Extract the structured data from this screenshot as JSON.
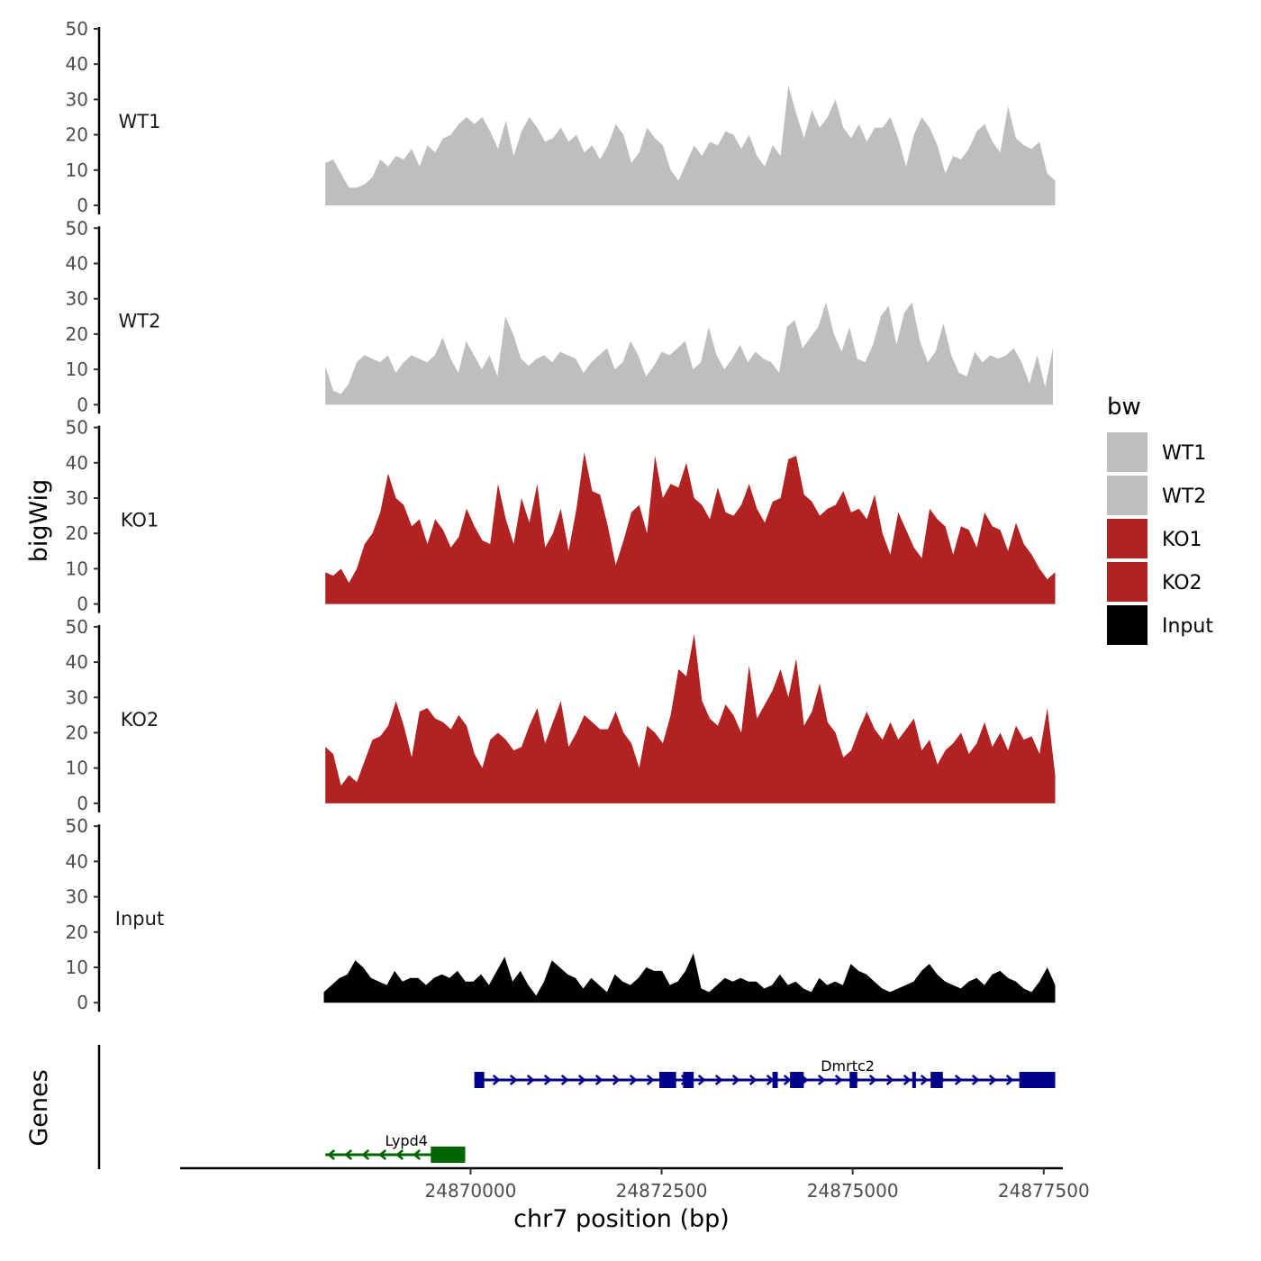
{
  "chart_data": {
    "type": "area",
    "title": "",
    "xlabel": "chr7 position (bp)",
    "ylabel": "bigWig",
    "genes_label": "Genes",
    "xlim": [
      24866200,
      24877750
    ],
    "x_ticks": [
      24870000,
      24872500,
      24875000,
      24877500
    ],
    "x_tick_labels": [
      "24870000",
      "24872500",
      "24875000",
      "24877500"
    ],
    "ylim": [
      0,
      50
    ],
    "y_ticks": [
      0,
      10,
      20,
      30,
      40,
      50
    ],
    "y_tick_labels": [
      "0",
      "10",
      "20",
      "30",
      "40",
      "50"
    ],
    "legend": {
      "title": "bw",
      "position": "right",
      "entries": [
        {
          "label": "WT1",
          "color": "#bebebe"
        },
        {
          "label": "WT2",
          "color": "#bebebe"
        },
        {
          "label": "KO1",
          "color": "#b22222"
        },
        {
          "label": "KO2",
          "color": "#b22222"
        },
        {
          "label": "Input",
          "color": "#000000"
        }
      ]
    },
    "series": [
      {
        "name": "WT1",
        "color": "#bebebe",
        "x_start": 24868100,
        "x_end": 24877650,
        "values": [
          12,
          13,
          9,
          5,
          5,
          6,
          8,
          13,
          11,
          14,
          13,
          16,
          11,
          17,
          15,
          19,
          20,
          23,
          25,
          23,
          25,
          21,
          16,
          24,
          14,
          21,
          25,
          22,
          18,
          19,
          22,
          18,
          20,
          15,
          17,
          13,
          17,
          23,
          20,
          12,
          15,
          22,
          19,
          17,
          10,
          7,
          12,
          17,
          14,
          18,
          17,
          21,
          20,
          16,
          20,
          14,
          11,
          17,
          14,
          34,
          26,
          19,
          27,
          22,
          25,
          30,
          22,
          19,
          23,
          18,
          22,
          22,
          25,
          19,
          11,
          20,
          25,
          22,
          17,
          9,
          14,
          13,
          16,
          21,
          23,
          18,
          15,
          28,
          19,
          17,
          16,
          18,
          9,
          7
        ]
      },
      {
        "name": "WT2",
        "color": "#bebebe",
        "x_start": 24868100,
        "x_end": 24877620,
        "values": [
          11,
          4,
          3,
          6,
          12,
          14,
          13,
          12,
          14,
          9,
          12,
          14,
          13,
          12,
          14,
          19,
          13,
          9,
          18,
          14,
          10,
          14,
          8,
          25,
          20,
          13,
          11,
          13,
          14,
          12,
          15,
          14,
          13,
          9,
          12,
          14,
          16,
          10,
          12,
          18,
          14,
          8,
          11,
          15,
          14,
          16,
          18,
          10,
          12,
          22,
          14,
          10,
          13,
          17,
          12,
          15,
          13,
          12,
          9,
          22,
          24,
          16,
          19,
          22,
          29,
          20,
          15,
          22,
          13,
          12,
          17,
          25,
          28,
          17,
          26,
          29,
          18,
          12,
          15,
          23,
          14,
          9,
          8,
          15,
          12,
          14,
          13,
          14,
          16,
          12,
          6,
          14,
          5,
          16
        ]
      },
      {
        "name": "KO1",
        "color": "#b22222",
        "x_start": 24868100,
        "x_end": 24877650,
        "values": [
          9,
          8,
          10,
          6,
          10,
          17,
          20,
          26,
          37,
          30,
          28,
          22,
          24,
          17,
          24,
          21,
          16,
          19,
          27,
          22,
          18,
          17,
          34,
          24,
          17,
          30,
          23,
          34,
          16,
          20,
          27,
          15,
          27,
          43,
          32,
          31,
          22,
          11,
          18,
          26,
          28,
          20,
          42,
          30,
          34,
          33,
          40,
          30,
          28,
          24,
          33,
          26,
          25,
          28,
          34,
          27,
          23,
          29,
          30,
          41,
          42,
          31,
          29,
          25,
          27,
          28,
          32,
          26,
          27,
          24,
          31,
          20,
          14,
          26,
          21,
          16,
          13,
          27,
          24,
          22,
          14,
          22,
          21,
          16,
          26,
          22,
          21,
          15,
          23,
          17,
          14,
          10,
          7,
          9
        ]
      },
      {
        "name": "KO2",
        "color": "#b22222",
        "x_start": 24868100,
        "x_end": 24877650,
        "values": [
          16,
          14,
          5,
          8,
          6,
          12,
          18,
          19,
          22,
          29,
          22,
          13,
          26,
          27,
          24,
          23,
          21,
          25,
          22,
          14,
          10,
          18,
          20,
          18,
          15,
          16,
          22,
          27,
          17,
          23,
          29,
          16,
          20,
          25,
          23,
          21,
          21,
          26,
          20,
          17,
          10,
          22,
          20,
          17,
          25,
          38,
          36,
          48,
          29,
          24,
          22,
          28,
          25,
          20,
          39,
          24,
          28,
          32,
          38,
          30,
          41,
          22,
          26,
          34,
          23,
          20,
          13,
          15,
          21,
          26,
          21,
          18,
          23,
          18,
          21,
          24,
          15,
          18,
          11,
          15,
          17,
          20,
          14,
          17,
          23,
          16,
          20,
          15,
          22,
          18,
          19,
          14,
          27,
          8
        ]
      },
      {
        "name": "Input",
        "color": "#000000",
        "x_start": 24868080,
        "x_end": 24877650,
        "values": [
          3,
          5,
          7,
          8,
          12,
          10,
          7,
          6,
          5,
          9,
          6,
          7,
          7,
          5,
          7,
          8,
          7,
          9,
          6,
          6,
          8,
          5,
          9,
          13,
          6,
          9,
          5,
          2,
          6,
          12,
          10,
          8,
          7,
          4,
          7,
          5,
          3,
          8,
          6,
          5,
          7,
          10,
          9,
          9,
          5,
          6,
          9,
          14,
          4,
          3,
          5,
          7,
          6,
          7,
          6,
          6,
          4,
          5,
          8,
          5,
          6,
          4,
          3,
          7,
          5,
          6,
          5,
          11,
          9,
          8,
          6,
          4,
          3,
          4,
          5,
          6,
          9,
          11,
          8,
          6,
          5,
          4,
          6,
          7,
          5,
          8,
          9,
          7,
          6,
          4,
          3,
          6,
          10,
          5
        ]
      }
    ],
    "genes": [
      {
        "name": "Dmrtc2",
        "strand": "+",
        "color": "#00008b",
        "start": 24870050,
        "end": 24877650,
        "exons": [
          [
            24870050,
            24870180
          ],
          [
            24872470,
            24872690
          ],
          [
            24872780,
            24872920
          ],
          [
            24873950,
            24874020
          ],
          [
            24874180,
            24874360
          ],
          [
            24874960,
            24875060
          ],
          [
            24875780,
            24875820
          ],
          [
            24876020,
            24876180
          ],
          [
            24877180,
            24877650
          ]
        ]
      },
      {
        "name": "Lypd4",
        "strand": "-",
        "color": "#006400",
        "start": 24868100,
        "end": 24869930,
        "exons": [
          [
            24869480,
            24869930
          ]
        ]
      }
    ]
  }
}
